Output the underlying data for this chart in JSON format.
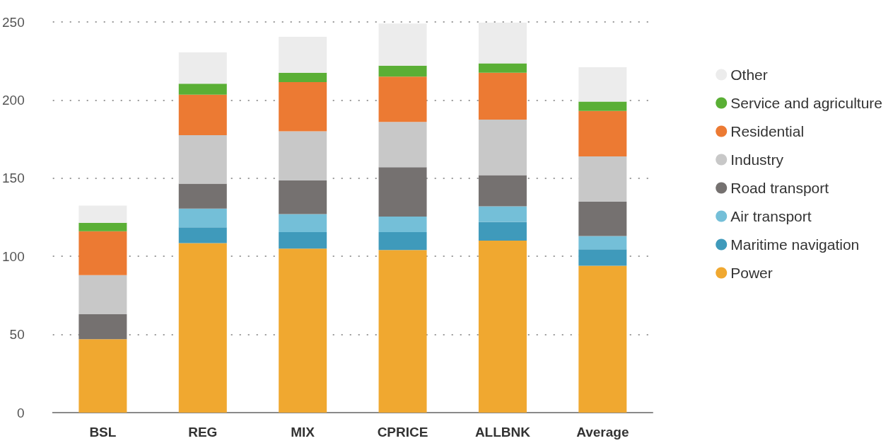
{
  "chart_data": {
    "type": "bar",
    "stacked": true,
    "categories": [
      "BSL",
      "REG",
      "MIX",
      "CPRICE",
      "ALLBNK",
      "Average"
    ],
    "series": [
      {
        "name": "Power",
        "color": "#f0a830",
        "values": [
          47,
          108.5,
          105,
          104,
          110,
          94
        ]
      },
      {
        "name": "Maritime navigation",
        "color": "#3f9abb",
        "values": [
          0,
          10,
          10.5,
          11.5,
          12,
          10.5
        ]
      },
      {
        "name": "Air transport",
        "color": "#74bfd8",
        "values": [
          0,
          12,
          11.5,
          10,
          10,
          8.5
        ]
      },
      {
        "name": "Road transport",
        "color": "#757170",
        "values": [
          16,
          16,
          21.5,
          31.5,
          20,
          22
        ]
      },
      {
        "name": "Industry",
        "color": "#c8c8c8",
        "values": [
          25,
          31,
          31.5,
          29,
          35.5,
          29
        ]
      },
      {
        "name": "Residential",
        "color": "#ec7a33",
        "values": [
          28,
          26,
          31.5,
          29,
          30,
          29
        ]
      },
      {
        "name": "Service and agriculture",
        "color": "#5aaf35",
        "values": [
          5.5,
          7,
          6,
          7,
          6,
          6
        ]
      },
      {
        "name": "Other",
        "color": "#ececec",
        "values": [
          11,
          20,
          23,
          27,
          26,
          22
        ]
      }
    ],
    "ylim": [
      0,
      250
    ],
    "yticks": [
      0,
      50,
      100,
      150,
      200,
      250
    ],
    "grid": "y",
    "legend": "right",
    "marker": "circle"
  }
}
